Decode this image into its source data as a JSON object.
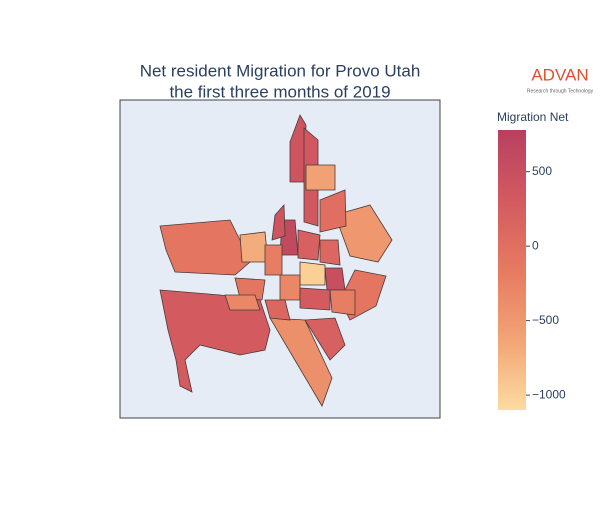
{
  "chart_data": {
    "type": "choropleth",
    "title": [
      "Net resident Migration for Provo Utah",
      "the first three months of 2019"
    ],
    "logo": {
      "name": "ADVAN",
      "tagline": "Research through Technology"
    },
    "colorbar_title": "Migration Net",
    "colorscale": [
      "#fcdca0",
      "#f2a474",
      "#e67a61",
      "#d35a60",
      "#b8405f"
    ],
    "clim": [
      -1100,
      780
    ],
    "cticks": [
      500,
      0,
      {
        "value": -500,
        "label": "−500"
      },
      {
        "value": -1000,
        "label": "−1000"
      }
    ],
    "values": [
      300,
      -100,
      -500,
      -100,
      -400,
      400,
      350,
      -600,
      0,
      600,
      200,
      100,
      -700,
      -200,
      -1000,
      500,
      -300,
      300,
      -100,
      -300,
      100,
      -200,
      200,
      400
    ]
  }
}
